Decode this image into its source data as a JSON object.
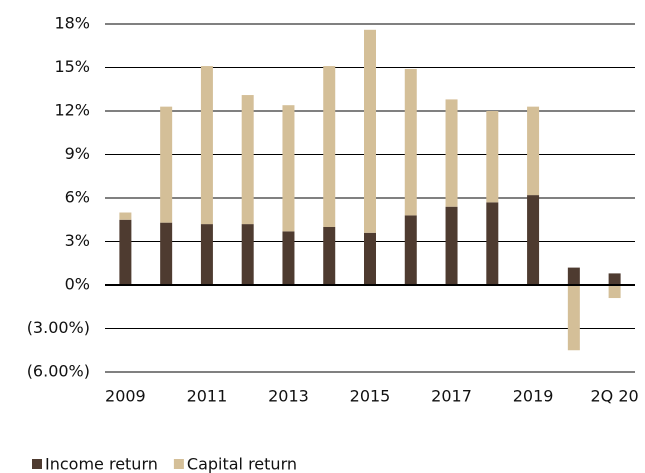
{
  "chart_data": {
    "type": "stacked_bar",
    "categories": [
      "2009",
      null,
      "2011",
      null,
      "2013",
      null,
      "2015",
      null,
      "2017",
      null,
      "2019",
      null,
      "2Q 20"
    ],
    "series": [
      {
        "name": "Income return",
        "color": "#4e3b30",
        "values": [
          4.5,
          4.3,
          4.2,
          4.2,
          3.7,
          4.0,
          3.6,
          4.8,
          5.4,
          5.7,
          6.2,
          1.2,
          0.8
        ]
      },
      {
        "name": "Capital return",
        "color": "#d4bf98",
        "values": [
          0.5,
          8.0,
          10.9,
          8.9,
          8.7,
          11.1,
          14.0,
          10.1,
          7.4,
          6.3,
          6.1,
          -4.5,
          -0.9
        ]
      }
    ],
    "ylim": [
      -6,
      18
    ],
    "yticks": [
      {
        "value": -6,
        "label": "(6.00%)"
      },
      {
        "value": -3,
        "label": "(3.00%)"
      },
      {
        "value": 0,
        "label": "0%"
      },
      {
        "value": 3,
        "label": "3%"
      },
      {
        "value": 6,
        "label": "6%"
      },
      {
        "value": 9,
        "label": "9%"
      },
      {
        "value": 12,
        "label": "12%"
      },
      {
        "value": 15,
        "label": "15%"
      },
      {
        "value": 18,
        "label": "18%"
      }
    ],
    "grid": true,
    "legend": "bottom-left"
  }
}
